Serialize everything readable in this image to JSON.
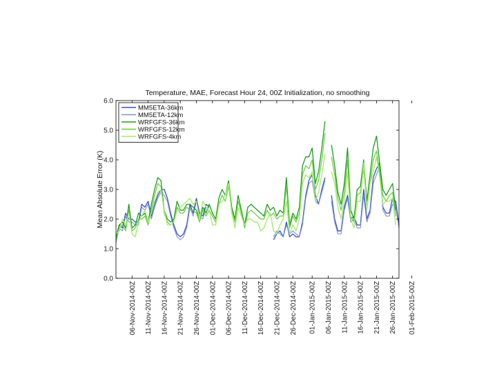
{
  "chart_data": {
    "type": "line",
    "title": "Temperature, MAE, Forecast Hour 24, 00Z Initialization, no smoothing",
    "xlabel": "",
    "ylabel": "Mean Absolute Error (K)",
    "ylim": [
      0,
      6
    ],
    "yticks": [
      "0.0",
      "1.0",
      "2.0",
      "3.0",
      "4.0",
      "5.0",
      "6.0"
    ],
    "x_start": "2014-11-01",
    "xticks": [
      "06-Nov-2014-00Z",
      "11-Nov-2014-00Z",
      "16-Nov-2014-00Z",
      "21-Nov-2014-00Z",
      "26-Nov-2014-00Z",
      "01-Dec-2014-00Z",
      "06-Dec-2014-00Z",
      "11-Dec-2014-00Z",
      "16-Dec-2014-00Z",
      "21-Dec-2014-00Z",
      "26-Dec-2014-00Z",
      "01-Jan-2015-00Z",
      "06-Jan-2015-00Z",
      "11-Jan-2015-00Z",
      "16-Jan-2015-00Z",
      "21-Jan-2015-00Z",
      "26-Jan-2015-00Z",
      "01-Feb-2015-00Z"
    ],
    "grid": false,
    "legend_position": "top-left",
    "series": [
      {
        "name": "MM5ETA-36km",
        "color": "#3a4fc0",
        "width": 1.3,
        "values": [
          1.3,
          1.8,
          1.7,
          2.2,
          2.0,
          2.0,
          1.9,
          1.9,
          2.5,
          2.4,
          2.6,
          2.1,
          2.5,
          2.8,
          3.0,
          3.0,
          2.7,
          2.2,
          1.8,
          1.5,
          1.4,
          1.5,
          1.8,
          2.5,
          2.2,
          2.7,
          2.2,
          2.1,
          2.5,
          2.4,
          null,
          null,
          null,
          null,
          null,
          null,
          null,
          null,
          null,
          null,
          null,
          null,
          null,
          null,
          null,
          null,
          null,
          null,
          null,
          1.3,
          1.5,
          1.6,
          1.4,
          1.9,
          1.4,
          1.5,
          1.4,
          1.4,
          1.9,
          2.8,
          3.3,
          3.5,
          2.8,
          2.5,
          3.0,
          3.4,
          null,
          2.8,
          2.0,
          1.6,
          1.6,
          2.4,
          2.8,
          2.0,
          2.1,
          1.8,
          1.8,
          3.0,
          2.0,
          2.3,
          3.4,
          3.7,
          3.9,
          2.4,
          2.2,
          2.2,
          2.7,
          2.6,
          1.8
        ]
      },
      {
        "name": "MM5ETA-12km",
        "color": "#7b8fe0",
        "width": 1.1,
        "values": [
          1.2,
          1.7,
          1.6,
          2.1,
          1.9,
          1.9,
          1.8,
          1.8,
          2.4,
          2.3,
          2.5,
          2.0,
          2.4,
          2.7,
          2.9,
          2.8,
          2.6,
          2.1,
          1.7,
          1.4,
          1.3,
          1.4,
          1.7,
          2.4,
          2.1,
          2.6,
          2.1,
          2.0,
          2.4,
          2.3,
          null,
          null,
          null,
          null,
          null,
          null,
          null,
          null,
          null,
          null,
          null,
          null,
          null,
          null,
          null,
          null,
          null,
          null,
          null,
          1.4,
          1.6,
          1.5,
          1.4,
          1.8,
          1.5,
          1.6,
          1.5,
          1.4,
          1.8,
          2.7,
          3.2,
          3.3,
          2.6,
          2.5,
          2.9,
          3.3,
          null,
          2.6,
          1.9,
          1.5,
          1.5,
          2.3,
          2.7,
          1.9,
          2.0,
          1.7,
          1.7,
          2.8,
          1.9,
          2.2,
          3.2,
          3.5,
          3.8,
          2.3,
          2.1,
          2.1,
          2.5,
          2.4,
          1.7
        ]
      },
      {
        "name": "WRFGFS-36km",
        "color": "#1f9a1f",
        "width": 1.3,
        "values": [
          1.4,
          1.8,
          1.9,
          1.7,
          2.5,
          1.7,
          1.8,
          2.2,
          2.1,
          2.2,
          1.9,
          2.5,
          3.0,
          3.4,
          3.3,
          2.3,
          2.0,
          1.9,
          2.0,
          2.6,
          2.3,
          2.3,
          2.5,
          2.5,
          2.4,
          2.3,
          2.0,
          2.4,
          2.2,
          2.5,
          2.2,
          2.0,
          2.7,
          3.0,
          2.8,
          3.3,
          2.4,
          2.0,
          2.8,
          2.3,
          1.8,
          2.4,
          2.5,
          2.4,
          2.3,
          2.2,
          2.1,
          2.5,
          2.3,
          2.4,
          2.1,
          2.3,
          2.2,
          3.4,
          1.8,
          2.2,
          2.0,
          2.4,
          3.8,
          4.1,
          4.1,
          4.4,
          3.2,
          3.6,
          4.4,
          5.3,
          null,
          4.5,
          3.8,
          2.9,
          2.5,
          3.2,
          4.4,
          2.3,
          2.0,
          3.0,
          3.1,
          4.0,
          2.6,
          3.5,
          4.4,
          4.8,
          3.9,
          3.0,
          2.8,
          3.0,
          3.2,
          2.3
        ]
      },
      {
        "name": "WRFGFS-12km",
        "color": "#5fd03b",
        "width": 1.2,
        "values": [
          1.3,
          1.7,
          1.8,
          1.6,
          2.3,
          1.6,
          1.7,
          2.0,
          2.0,
          2.1,
          1.8,
          2.3,
          2.8,
          3.2,
          3.1,
          2.2,
          1.9,
          1.8,
          1.9,
          2.4,
          2.2,
          2.2,
          2.4,
          2.3,
          2.3,
          2.2,
          1.9,
          2.3,
          2.1,
          2.3,
          2.1,
          1.9,
          2.5,
          2.8,
          2.6,
          3.1,
          2.3,
          1.9,
          2.6,
          2.2,
          1.7,
          2.2,
          2.3,
          2.2,
          2.1,
          2.0,
          2.0,
          2.3,
          2.1,
          2.2,
          2.0,
          2.1,
          2.1,
          3.1,
          1.7,
          2.1,
          1.9,
          2.2,
          3.5,
          3.8,
          3.7,
          4.0,
          3.0,
          3.3,
          4.0,
          4.9,
          null,
          4.1,
          3.5,
          2.7,
          2.3,
          2.9,
          4.0,
          2.1,
          1.9,
          2.8,
          2.9,
          3.7,
          2.4,
          3.2,
          4.0,
          4.3,
          3.6,
          2.8,
          2.6,
          2.8,
          2.9,
          2.1
        ]
      },
      {
        "name": "WRFGFS-4km",
        "color": "#a8ec6f",
        "width": 1.4,
        "values": [
          1.5,
          1.6,
          2.0,
          1.8,
          2.2,
          1.5,
          1.4,
          1.9,
          2.1,
          2.3,
          1.9,
          2.2,
          2.6,
          2.9,
          3.0,
          2.3,
          1.8,
          1.8,
          1.9,
          2.3,
          2.4,
          2.5,
          2.6,
          2.7,
          2.5,
          2.6,
          2.0,
          2.6,
          2.4,
          2.3,
          1.8,
          1.8,
          2.5,
          2.6,
          2.8,
          3.2,
          2.2,
          1.7,
          2.4,
          2.1,
          1.8,
          2.0,
          2.0,
          1.9,
          1.9,
          1.6,
          1.7,
          2.0,
          2.2,
          1.6,
          1.5,
          1.8,
          2.0,
          2.6,
          1.5,
          1.8,
          1.6,
          2.0,
          3.2,
          3.5,
          3.4,
          3.6,
          2.6,
          2.9,
          3.5,
          4.2,
          null,
          3.6,
          3.2,
          2.4,
          2.0,
          2.6,
          3.6,
          2.0,
          1.7,
          2.6,
          2.6,
          3.9,
          2.3,
          3.2,
          3.6,
          4.1,
          3.4,
          2.5,
          2.6,
          2.6,
          2.7,
          1.8
        ]
      }
    ]
  }
}
